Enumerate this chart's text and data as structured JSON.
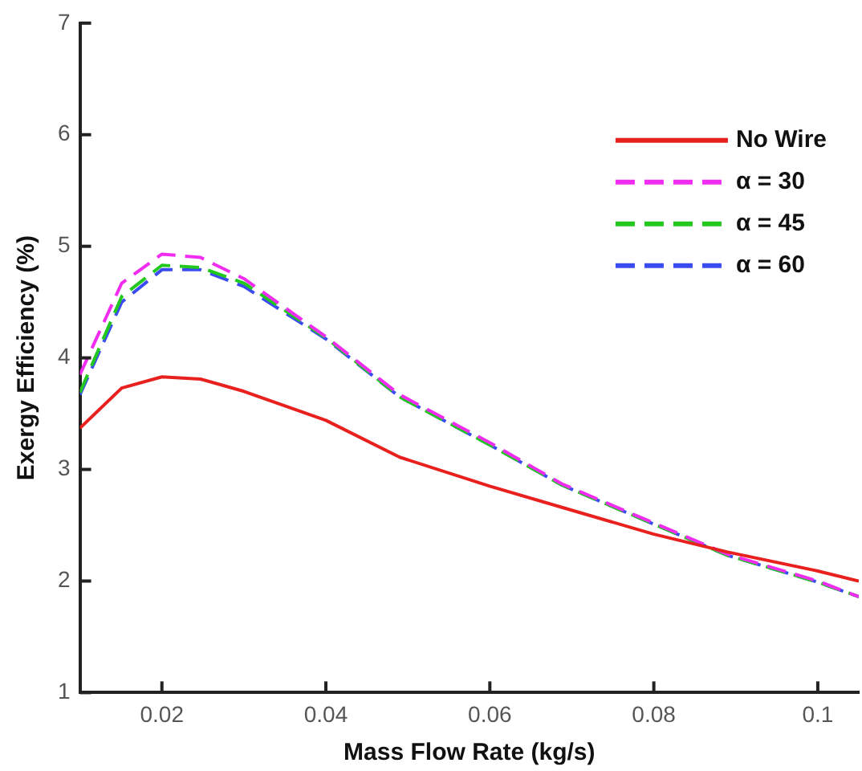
{
  "chart_data": {
    "type": "line",
    "xlabel": "Mass Flow Rate (kg/s)",
    "ylabel": "Exergy Efficiency (%)",
    "x": [
      0.01,
      0.0151,
      0.02,
      0.0247,
      0.03,
      0.04,
      0.049,
      0.06,
      0.0688,
      0.08,
      0.089,
      0.1,
      0.105
    ],
    "series": [
      {
        "name": "No Wire",
        "color": "#e8201e",
        "line_style": "solid",
        "values": [
          3.37,
          3.73,
          3.83,
          3.81,
          3.7,
          3.44,
          3.11,
          2.85,
          2.66,
          2.42,
          2.26,
          2.09,
          2.0
        ]
      },
      {
        "name": "α = 30",
        "color": "#f02cf0",
        "line_style": "dashed",
        "values": [
          3.85,
          4.67,
          4.93,
          4.9,
          4.71,
          4.19,
          3.67,
          3.24,
          2.87,
          2.52,
          2.24,
          2.0,
          1.86
        ]
      },
      {
        "name": "α = 45",
        "color": "#22c81e",
        "line_style": "dashed",
        "values": [
          3.69,
          4.55,
          4.83,
          4.81,
          4.67,
          4.18,
          3.65,
          3.22,
          2.86,
          2.51,
          2.23,
          1.99,
          1.86
        ]
      },
      {
        "name": "α = 60",
        "color": "#3a4cf0",
        "line_style": "dashed",
        "values": [
          3.67,
          4.5,
          4.79,
          4.79,
          4.64,
          4.17,
          3.65,
          3.22,
          2.86,
          2.51,
          2.23,
          1.99,
          1.86
        ]
      }
    ],
    "xlim": [
      0.01,
      0.105
    ],
    "xticks": [
      0.02,
      0.04,
      0.06,
      0.08,
      0.1
    ],
    "ylim": [
      1,
      7
    ],
    "yticks": [
      1,
      2,
      3,
      4,
      5,
      6,
      7
    ],
    "grid": false,
    "legend": "top right",
    "marker": "none"
  }
}
